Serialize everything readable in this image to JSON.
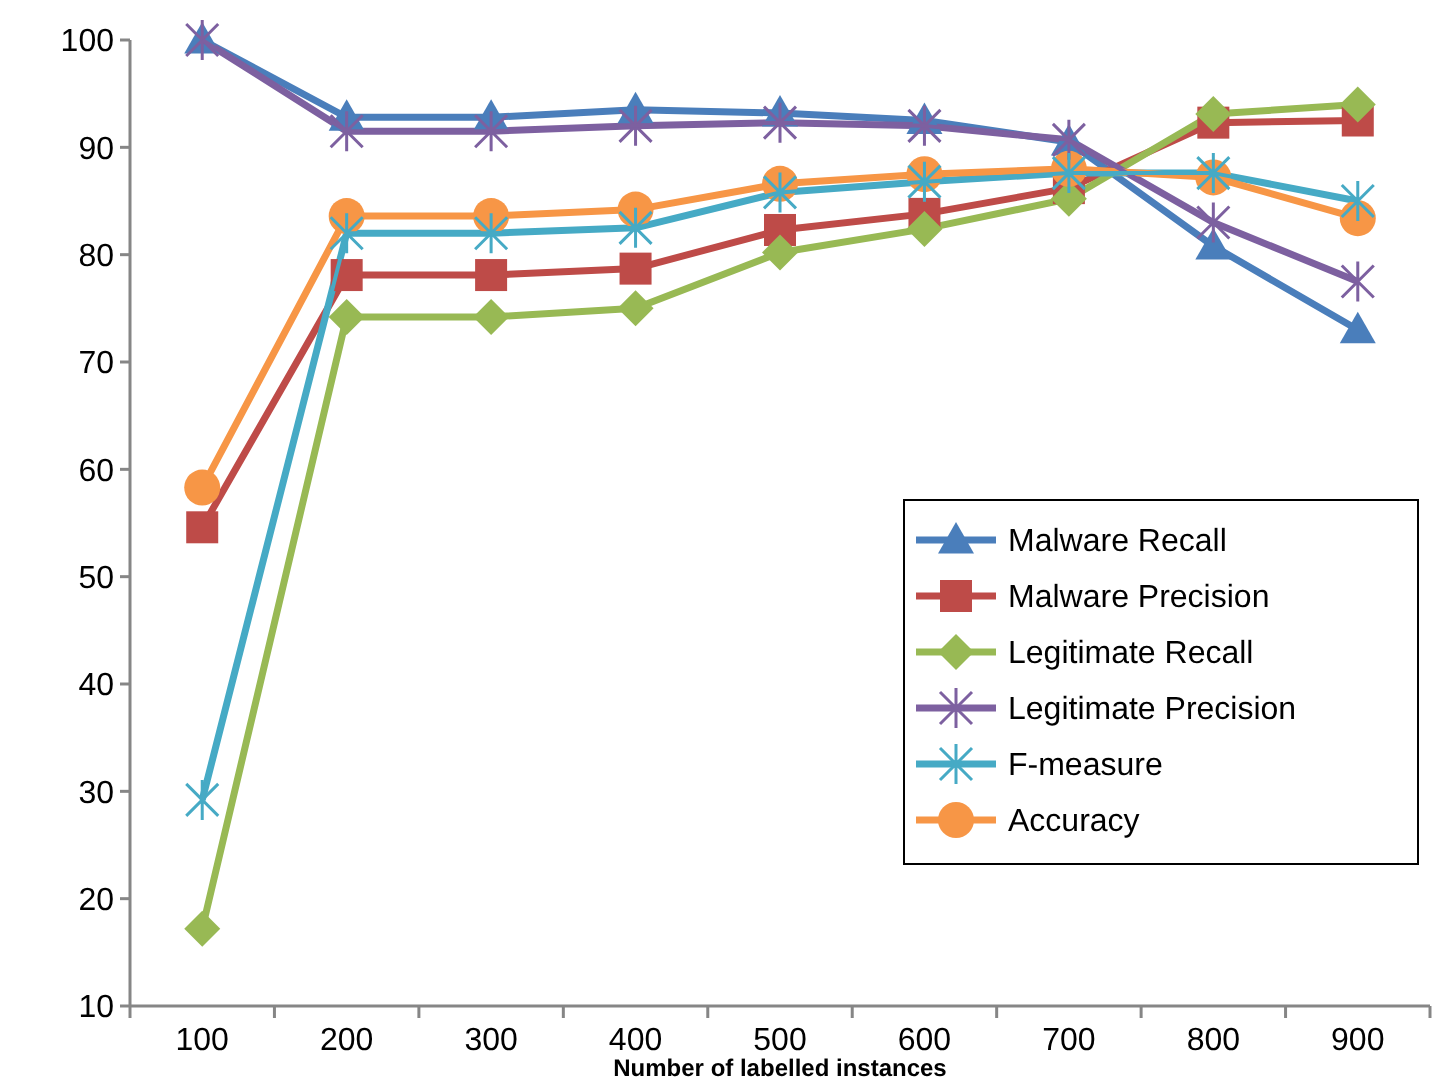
{
  "chart_data": {
    "type": "line",
    "xlabel": "Number of labelled  instances",
    "categories": [
      "100",
      "200",
      "300",
      "400",
      "500",
      "600",
      "700",
      "800",
      "900"
    ],
    "ylim": [
      10,
      100
    ],
    "yticks": [
      10,
      20,
      30,
      40,
      50,
      60,
      70,
      80,
      90,
      100
    ],
    "legend": "right",
    "series": [
      {
        "name": "Malware Recall",
        "color": "#4a7ebb",
        "marker": "triangle",
        "values": [
          100,
          92.8,
          92.8,
          93.5,
          93.2,
          92.5,
          90.5,
          80.8,
          73
        ]
      },
      {
        "name": "Malware Precision",
        "color": "#be4b48",
        "marker": "square",
        "values": [
          54.6,
          78.1,
          78.1,
          78.7,
          82.3,
          83.8,
          86.2,
          92.3,
          92.5
        ]
      },
      {
        "name": "Legitimate Recall",
        "color": "#98b954",
        "marker": "diamond",
        "values": [
          17.2,
          74.2,
          74.2,
          75,
          80.2,
          82.4,
          85.2,
          93.1,
          94
        ]
      },
      {
        "name": "Legitimate Precision",
        "color": "#7d60a0",
        "marker": "cross",
        "values": [
          100,
          91.5,
          91.5,
          92,
          92.3,
          92,
          90.7,
          83,
          77.5
        ]
      },
      {
        "name": "F-measure",
        "color": "#46aac5",
        "marker": "cross",
        "values": [
          29.2,
          82,
          82,
          82.5,
          85.8,
          86.8,
          87.6,
          87.6,
          85
        ]
      },
      {
        "name": "Accuracy",
        "color": "#f79646",
        "marker": "circle",
        "values": [
          58.3,
          83.6,
          83.6,
          84.2,
          86.6,
          87.5,
          88,
          87.2,
          83.4
        ]
      }
    ]
  }
}
